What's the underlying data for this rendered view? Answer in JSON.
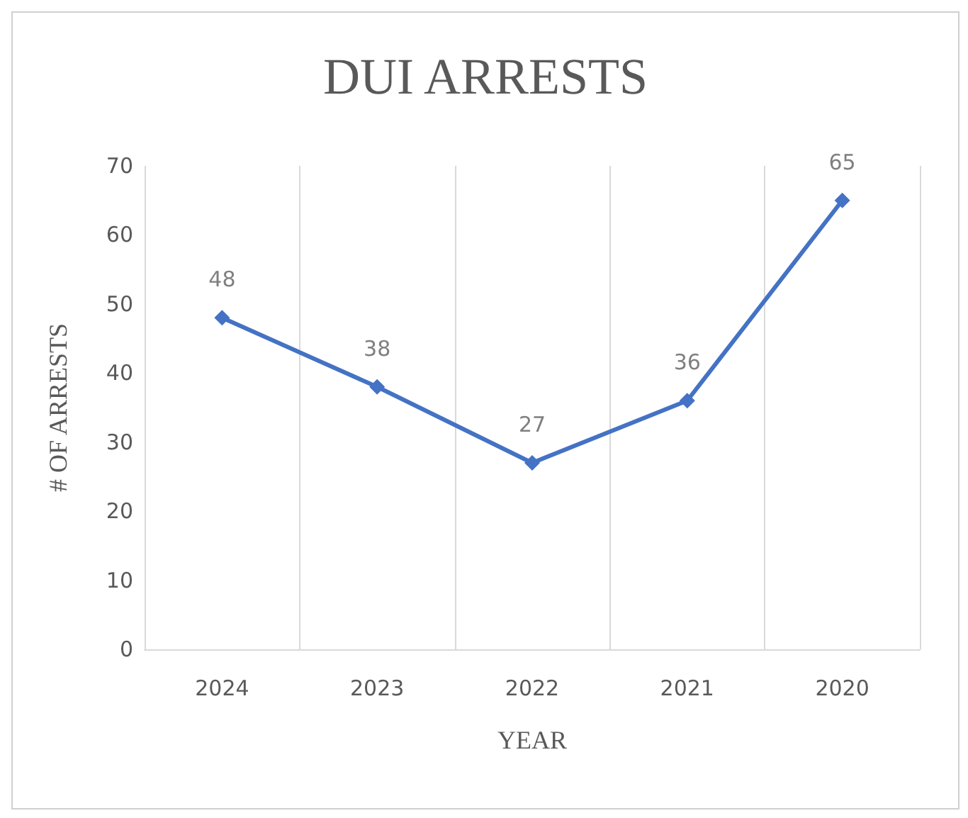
{
  "chart_data": {
    "type": "line",
    "title": "DUI ARRESTS",
    "xlabel": "YEAR",
    "ylabel": "# OF ARRESTS",
    "categories": [
      "2024",
      "2023",
      "2022",
      "2021",
      "2020"
    ],
    "series": [
      {
        "color": "#4472c4",
        "values": [
          48,
          38,
          27,
          36,
          65
        ]
      }
    ],
    "ylim": [
      0,
      70
    ],
    "yticks": [
      0,
      10,
      20,
      30,
      40,
      50,
      60,
      70
    ],
    "grid": "x",
    "marker": "diamond",
    "line_style": "solid",
    "data_labels": true
  }
}
